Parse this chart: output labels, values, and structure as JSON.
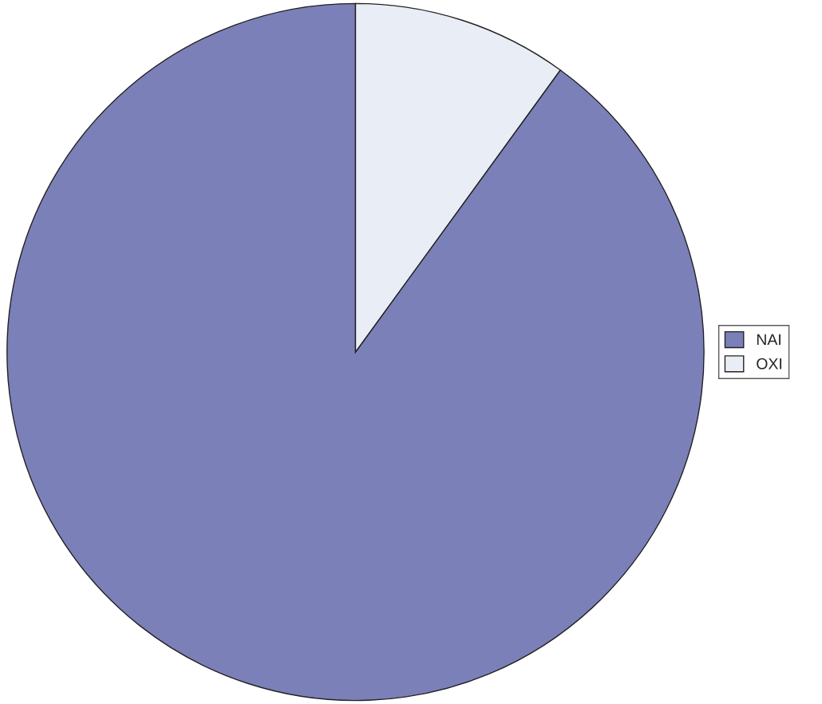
{
  "chart_data": {
    "type": "pie",
    "categories": [
      "NAI",
      "OXI"
    ],
    "values": [
      90,
      10
    ],
    "colors": [
      "#7c80b9",
      "#e9eef6"
    ],
    "legend": "right"
  }
}
